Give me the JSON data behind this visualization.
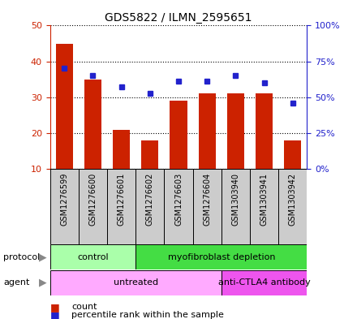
{
  "title": "GDS5822 / ILMN_2595651",
  "samples": [
    "GSM1276599",
    "GSM1276600",
    "GSM1276601",
    "GSM1276602",
    "GSM1276603",
    "GSM1276604",
    "GSM1303940",
    "GSM1303941",
    "GSM1303942"
  ],
  "counts": [
    45,
    35,
    21,
    18,
    29,
    31,
    31,
    31,
    18
  ],
  "percentiles": [
    70,
    65,
    57,
    53,
    61,
    61,
    65,
    60,
    46
  ],
  "ylim_left": [
    10,
    50
  ],
  "ylim_right": [
    0,
    100
  ],
  "yticks_left": [
    10,
    20,
    30,
    40,
    50
  ],
  "yticks_right": [
    0,
    25,
    50,
    75,
    100
  ],
  "bar_color": "#cc2200",
  "dot_color": "#2222cc",
  "protocol_groups": [
    {
      "label": "control",
      "start": 0,
      "end": 2,
      "color": "#aaffaa"
    },
    {
      "label": "myofibroblast depletion",
      "start": 3,
      "end": 8,
      "color": "#44dd44"
    }
  ],
  "agent_groups": [
    {
      "label": "untreated",
      "start": 0,
      "end": 5,
      "color": "#ffaaff"
    },
    {
      "label": "anti-CTLA4 antibody",
      "start": 6,
      "end": 8,
      "color": "#ee55ee"
    }
  ],
  "protocol_label": "protocol",
  "agent_label": "agent",
  "legend_count_label": "count",
  "legend_pct_label": "percentile rank within the sample",
  "bar_label_color": "#cc2200",
  "right_axis_color": "#2222cc",
  "sample_box_color": "#cccccc",
  "grid_color": "#000000"
}
